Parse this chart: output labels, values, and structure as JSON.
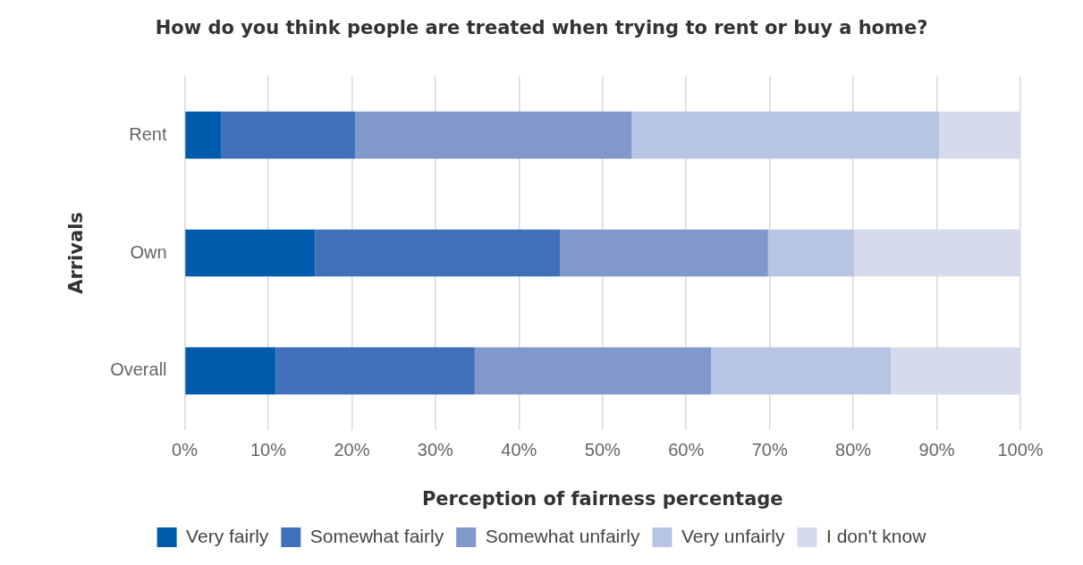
{
  "chart_data": {
    "type": "bar",
    "orientation": "horizontal",
    "stacked": true,
    "title": "How do you think people are treated when trying to rent or buy a home?",
    "xlabel": "Perception of fairness percentage",
    "ylabel": "Arrivals",
    "categories": [
      "Rent",
      "Own",
      "Overall"
    ],
    "series": [
      {
        "name": "Very fairly",
        "color": "#005bac",
        "values": [
          4.4,
          15.6,
          10.9
        ]
      },
      {
        "name": "Somewhat fairly",
        "color": "#3f70b9",
        "values": [
          16.0,
          29.3,
          23.8
        ]
      },
      {
        "name": "Somewhat unfairly",
        "color": "#8198cd",
        "values": [
          33.1,
          24.9,
          28.3
        ]
      },
      {
        "name": "Very unfairly",
        "color": "#b8c4e3",
        "values": [
          36.8,
          10.3,
          21.5
        ]
      },
      {
        "name": "I don't know",
        "color": "#d5daed",
        "values": [
          9.7,
          19.9,
          15.5
        ]
      }
    ],
    "xlim": [
      0,
      100
    ],
    "xticks": [
      {
        "value": 0,
        "label": "0%"
      },
      {
        "value": 10,
        "label": "10%"
      },
      {
        "value": 20,
        "label": "20%"
      },
      {
        "value": 30,
        "label": "30%"
      },
      {
        "value": 40,
        "label": "40%"
      },
      {
        "value": 50,
        "label": "50%"
      },
      {
        "value": 60,
        "label": "60%"
      },
      {
        "value": 70,
        "label": "70%"
      },
      {
        "value": 80,
        "label": "80%"
      },
      {
        "value": 90,
        "label": "90%"
      },
      {
        "value": 100,
        "label": "100%"
      }
    ],
    "grid": "x",
    "legend": "bottom"
  }
}
